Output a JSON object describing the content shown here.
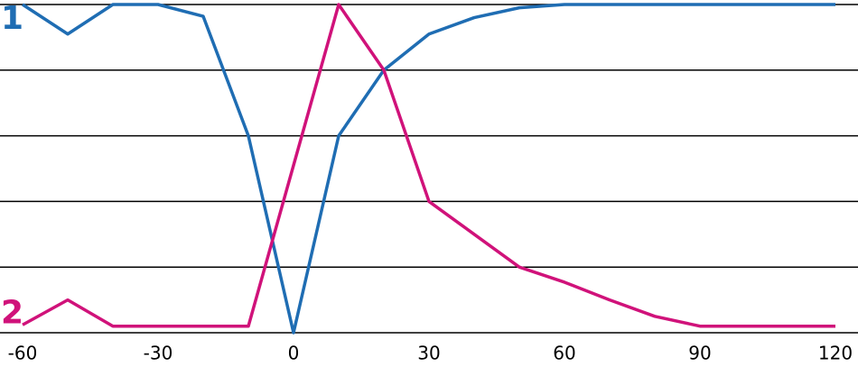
{
  "chart_data": {
    "type": "line",
    "x": [
      -60,
      -50,
      -40,
      -30,
      -20,
      -10,
      0,
      10,
      20,
      30,
      40,
      50,
      60,
      70,
      80,
      90,
      100,
      110,
      120
    ],
    "series": [
      {
        "name": "1",
        "color": "#1f6db3",
        "values": [
          5,
          4.55,
          5,
          5,
          4.82,
          3,
          0,
          3,
          4,
          4.55,
          4.8,
          4.95,
          5,
          5,
          5,
          5,
          5,
          5,
          5
        ]
      },
      {
        "name": "2",
        "color": "#d0127a",
        "values": [
          0.12,
          0.5,
          0.1,
          0.1,
          0.1,
          0.1,
          2.55,
          5,
          4,
          2,
          1.5,
          1,
          0.77,
          0.5,
          0.25,
          0.1,
          0.1,
          0.1,
          0.1
        ]
      }
    ],
    "xlim": [
      -60,
      120
    ],
    "xticks": [
      -60,
      -30,
      0,
      30,
      60,
      90,
      120
    ],
    "ylim": [
      0,
      5
    ],
    "yticks": [
      0,
      1,
      2,
      3,
      4,
      5
    ],
    "grid": true
  }
}
